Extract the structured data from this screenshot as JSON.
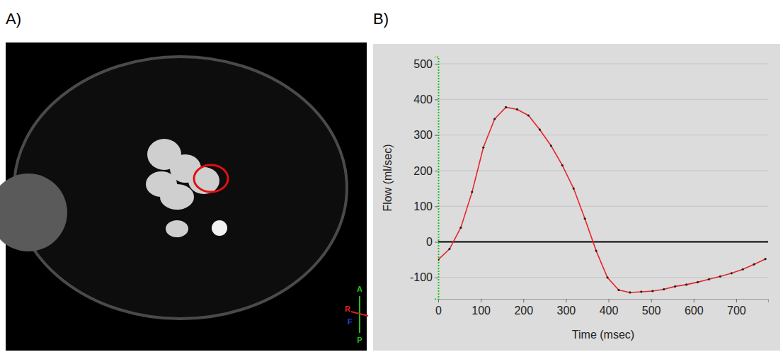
{
  "panel_labels": [
    "A)",
    "B)"
  ],
  "image": {
    "orientation_labels": [
      "A",
      "R",
      "F",
      "P"
    ]
  },
  "chart_data": {
    "type": "line",
    "x_label": "Time (msec)",
    "y_label": "Flow (ml/sec)",
    "x": [
      0,
      26.5,
      53,
      79.5,
      106,
      132.5,
      159,
      185.5,
      212,
      238.5,
      265,
      291.5,
      318,
      344.5,
      371,
      397.5,
      424,
      450.5,
      477,
      503.5,
      530,
      556.5,
      583,
      609.5,
      636,
      662.5,
      689,
      715.5,
      742,
      768.5
    ],
    "values": [
      -50,
      -20,
      40,
      140,
      265,
      345,
      378,
      372,
      355,
      315,
      270,
      215,
      150,
      65,
      -25,
      -100,
      -135,
      -142,
      -140,
      -138,
      -133,
      -125,
      -120,
      -113,
      -105,
      -97,
      -88,
      -77,
      -63,
      -48
    ],
    "color": "#e8262a",
    "marker": "circle",
    "xlim": [
      0,
      775
    ],
    "xticks": [
      0,
      100,
      200,
      300,
      400,
      500,
      600,
      700
    ],
    "ylim": [
      -160,
      520
    ],
    "yticks": [
      -100,
      0,
      100,
      200,
      300,
      400,
      500
    ],
    "grid": true
  }
}
